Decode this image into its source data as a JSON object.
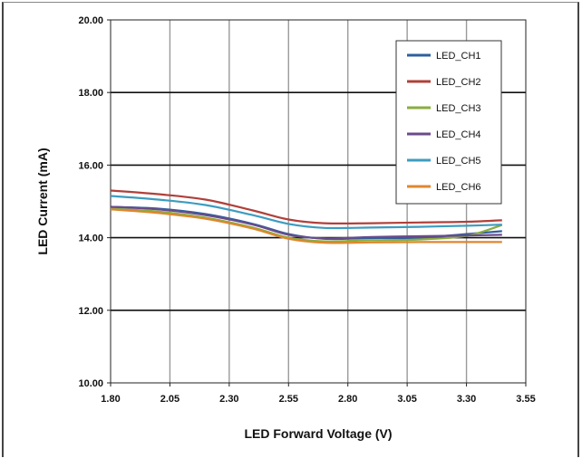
{
  "chart_data": {
    "type": "line",
    "title": "",
    "xlabel": "LED Forward Voltage (V)",
    "ylabel": "LED Current (mA)",
    "xlim": [
      1.8,
      3.55
    ],
    "ylim": [
      10.0,
      20.0
    ],
    "x_ticks": [
      "1.80",
      "2.05",
      "2.30",
      "2.55",
      "2.80",
      "3.05",
      "3.30",
      "3.55"
    ],
    "y_ticks": [
      "10.00",
      "12.00",
      "14.00",
      "16.00",
      "18.00",
      "20.00"
    ],
    "grid": true,
    "legend_position": "top-right",
    "x": [
      1.8,
      2.0,
      2.2,
      2.4,
      2.55,
      2.7,
      2.9,
      3.1,
      3.3,
      3.45
    ],
    "series": [
      {
        "name": "LED_CH1",
        "color": "#2e5f9e",
        "values": [
          14.85,
          14.8,
          14.65,
          14.38,
          14.1,
          13.97,
          13.99,
          14.0,
          14.1,
          14.18
        ]
      },
      {
        "name": "LED_CH2",
        "color": "#b0403a",
        "values": [
          15.3,
          15.2,
          15.05,
          14.75,
          14.5,
          14.4,
          14.4,
          14.42,
          14.44,
          14.48
        ]
      },
      {
        "name": "LED_CH3",
        "color": "#8aad3e",
        "values": [
          14.8,
          14.72,
          14.55,
          14.28,
          14.0,
          13.9,
          13.93,
          13.95,
          14.05,
          14.35
        ]
      },
      {
        "name": "LED_CH4",
        "color": "#6a4b8c",
        "values": [
          14.85,
          14.78,
          14.62,
          14.36,
          14.08,
          13.98,
          14.02,
          14.04,
          14.06,
          14.08
        ]
      },
      {
        "name": "LED_CH5",
        "color": "#3d9cc0",
        "values": [
          15.15,
          15.05,
          14.9,
          14.62,
          14.38,
          14.27,
          14.28,
          14.3,
          14.33,
          14.36
        ]
      },
      {
        "name": "LED_CH6",
        "color": "#e0862d",
        "values": [
          14.78,
          14.68,
          14.52,
          14.25,
          13.97,
          13.86,
          13.87,
          13.88,
          13.88,
          13.88
        ]
      }
    ]
  }
}
